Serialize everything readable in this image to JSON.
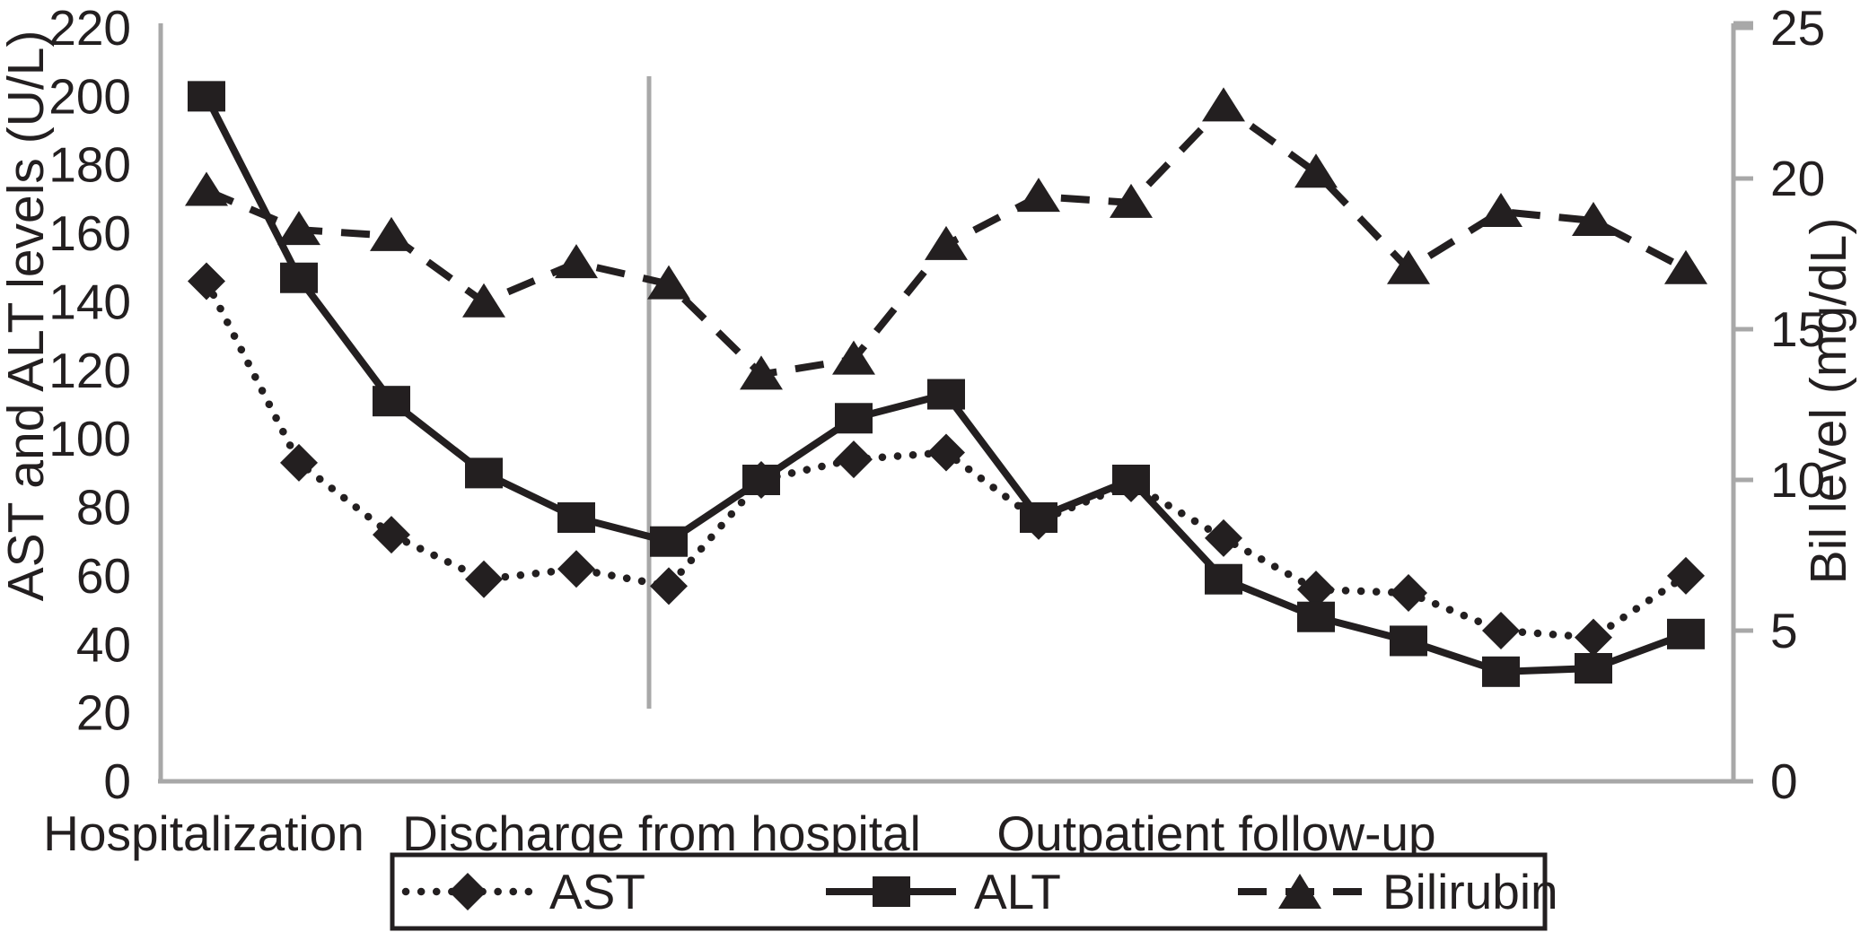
{
  "figure": {
    "background": "#ffffff",
    "ink_color": "#231f20",
    "axis_color": "#a8a8a8"
  },
  "axes": {
    "left": {
      "title": "AST and ALT levels (U/L)",
      "ticks": [
        220,
        200,
        180,
        160,
        140,
        120,
        100,
        80,
        60,
        40,
        20,
        0
      ],
      "range": [
        0,
        220
      ]
    },
    "right": {
      "title": "Bil level (mg/dL)",
      "ticks": [
        25,
        20,
        15,
        10,
        5,
        0
      ],
      "range": [
        0,
        25
      ]
    },
    "x": {
      "labels": [
        "Hospitalization",
        "Discharge from hospital",
        "Outpatient follow-up"
      ]
    }
  },
  "legend": {
    "items": [
      {
        "label": "AST",
        "marker": "diamond-icon",
        "line_style": "dotted"
      },
      {
        "label": "ALT",
        "marker": "square-icon",
        "line_style": "solid"
      },
      {
        "label": "Bilirubin",
        "marker": "triangle-icon",
        "line_style": "dashed"
      }
    ]
  },
  "chart_data": {
    "type": "line",
    "x_index": [
      1,
      2,
      3,
      4,
      5,
      6,
      7,
      8,
      9,
      10,
      11,
      12,
      13,
      14,
      15,
      16,
      17
    ],
    "x_phase_labels": [
      "Hospitalization",
      "Discharge from hospital",
      "Outpatient follow-up"
    ],
    "series": [
      {
        "name": "AST",
        "axis": "left",
        "marker": "diamond",
        "line_style": "dotted",
        "values": [
          146,
          93,
          72,
          59,
          62,
          57,
          88,
          94,
          96,
          76,
          87,
          71,
          56,
          55,
          44,
          42,
          60
        ]
      },
      {
        "name": "ALT",
        "axis": "left",
        "marker": "square",
        "line_style": "solid",
        "values": [
          200,
          147,
          111,
          90,
          77,
          70,
          88,
          106,
          113,
          77,
          88,
          59,
          48,
          41,
          32,
          33,
          43
        ]
      },
      {
        "name": "Bilirubin",
        "axis": "right",
        "marker": "triangle",
        "line_style": "dashed",
        "values": [
          19.6,
          18.3,
          18.1,
          15.9,
          17.2,
          16.5,
          13.5,
          14.0,
          17.8,
          19.4,
          19.2,
          22.4,
          20.2,
          17.0,
          18.9,
          18.6,
          17.0
        ]
      }
    ],
    "left_ylabel": "AST and ALT levels (U/L)",
    "right_ylabel": "Bil level (mg/dL)",
    "left_ylim": [
      0,
      220
    ],
    "right_ylim": [
      0,
      25
    ],
    "grid": false,
    "legend_position": "bottom",
    "annotations": {
      "vertical_event_line": "gray vertical rule between point 5 and point 6 (at discharge from hospital)"
    }
  }
}
